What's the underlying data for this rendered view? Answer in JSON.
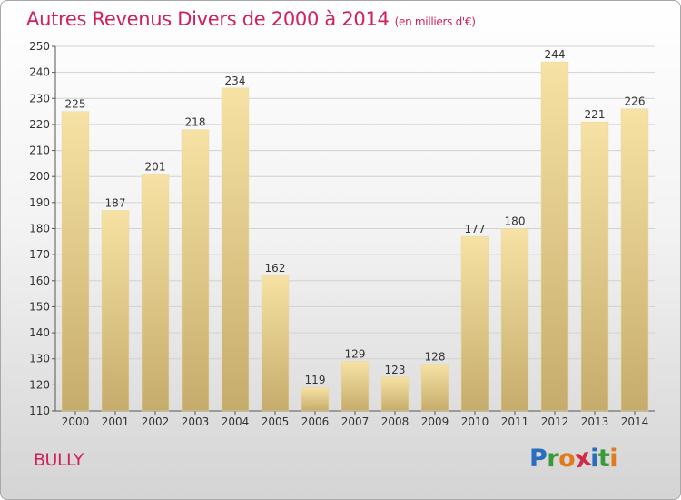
{
  "header": {
    "title": "Autres Revenus Divers de 2000 à 2014",
    "unit": "(en milliers d'€)"
  },
  "footer": {
    "city": "BULLY",
    "brand_letters": [
      "P",
      "r",
      "o",
      "x",
      "i",
      "t",
      "i"
    ],
    "brand_colors": [
      "#2a6ebd",
      "#3a9a3a",
      "#e07a1a",
      "#d42a4a",
      "#2a6ebd",
      "#3a9a3a",
      "#e07a1a"
    ]
  },
  "colors": {
    "title": "#d31f5a",
    "bar_top": "#f6e2a4",
    "bar_bottom": "#c6ac6c"
  },
  "chart_data": {
    "type": "bar",
    "title": "Autres Revenus Divers de 2000 à 2014",
    "subtitle": "(en milliers d'€)",
    "xlabel": "",
    "ylabel": "",
    "categories": [
      "2000",
      "2001",
      "2002",
      "2003",
      "2004",
      "2005",
      "2006",
      "2007",
      "2008",
      "2009",
      "2010",
      "2011",
      "2012",
      "2013",
      "2014"
    ],
    "values": [
      225,
      187,
      201,
      218,
      234,
      162,
      119,
      129,
      123,
      128,
      177,
      180,
      244,
      221,
      226
    ],
    "ylim": [
      110,
      250
    ],
    "yticks": [
      110,
      120,
      130,
      140,
      150,
      160,
      170,
      180,
      190,
      200,
      210,
      220,
      230,
      240,
      250
    ],
    "grid": true,
    "legend": "none"
  }
}
